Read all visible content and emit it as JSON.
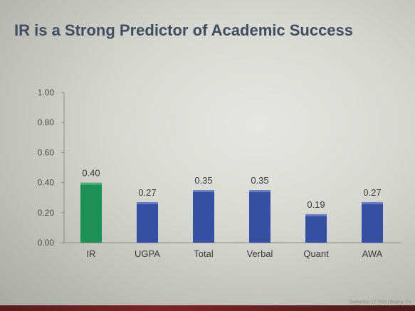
{
  "title": "IR is a Strong Predictor of Academic Success",
  "footer": "September 17 2014 | Beijing, Ch",
  "colors": {
    "highlight_bar": "#1f8f55",
    "bar": "#3550a0",
    "tick_text": "#4a4a4a",
    "axis": "#8a8a8a"
  },
  "chart_data": {
    "type": "bar",
    "title": "IR is a Strong Predictor of Academic Success",
    "xlabel": "",
    "ylabel": "",
    "categories": [
      "IR",
      "UGPA",
      "Total",
      "Verbal",
      "Quant",
      "AWA"
    ],
    "values": [
      0.4,
      0.27,
      0.35,
      0.35,
      0.19,
      0.27
    ],
    "value_labels": [
      "0.40",
      "0.27",
      "0.35",
      "0.35",
      "0.19",
      "0.27"
    ],
    "highlight_index": 0,
    "ylim": [
      0,
      1
    ],
    "yticks": [
      "0.00",
      "0.20",
      "0.40",
      "0.60",
      "0.80",
      "1.00"
    ],
    "grid": false,
    "legend": "none"
  }
}
